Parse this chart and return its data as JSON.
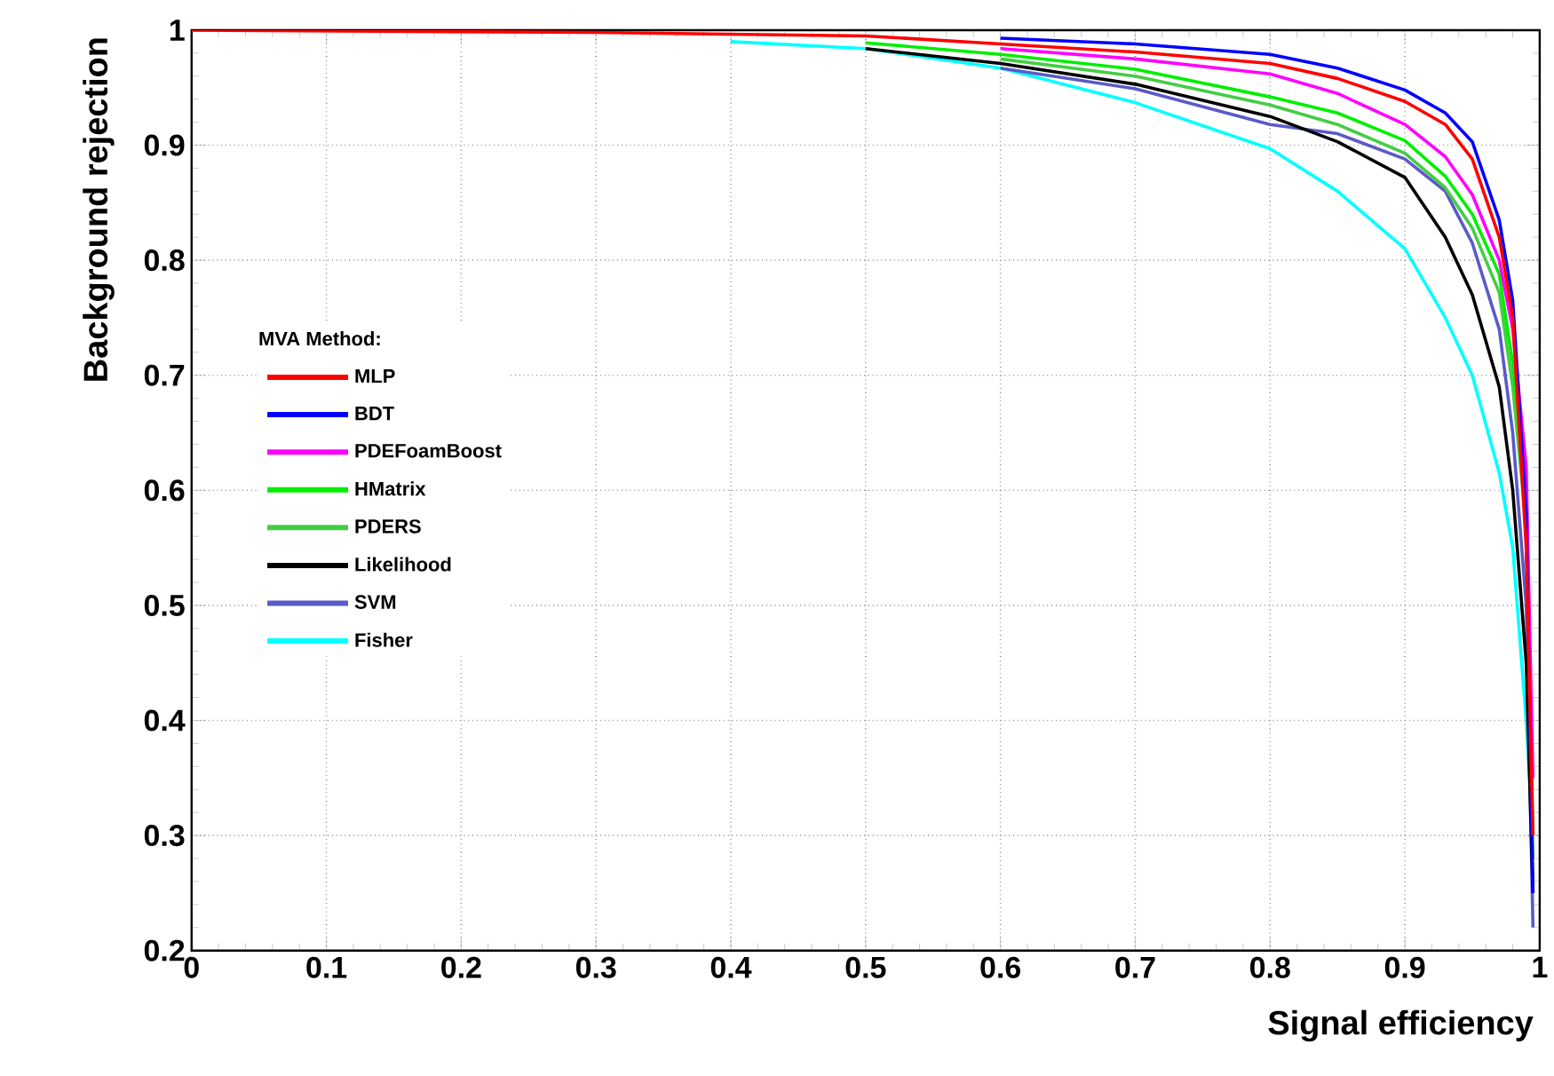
{
  "chart_data": {
    "type": "line",
    "xlabel": "Signal efficiency",
    "ylabel": "Background rejection",
    "legend_title": "MVA Method:",
    "xlim": [
      0,
      1
    ],
    "ylim": [
      0.2,
      1
    ],
    "xticks": [
      0,
      0.1,
      0.2,
      0.3,
      0.4,
      0.5,
      0.6,
      0.7,
      0.8,
      0.9,
      1
    ],
    "yticks": [
      0.2,
      0.3,
      0.4,
      0.5,
      0.6,
      0.7,
      0.8,
      0.9,
      1
    ],
    "grid": true,
    "legend": "left",
    "marker": "none",
    "series": [
      {
        "name": "MLP",
        "color": "#ff0000",
        "x": [
          0,
          0.3,
          0.5,
          0.6,
          0.7,
          0.8,
          0.85,
          0.9,
          0.93,
          0.95,
          0.97,
          0.98,
          0.99,
          0.995
        ],
        "values": [
          1,
          0.998,
          0.995,
          0.988,
          0.981,
          0.971,
          0.958,
          0.938,
          0.918,
          0.888,
          0.82,
          0.75,
          0.55,
          0.3
        ]
      },
      {
        "name": "BDT",
        "color": "#0000ff",
        "x": [
          0.6,
          0.7,
          0.8,
          0.85,
          0.9,
          0.93,
          0.95,
          0.97,
          0.98,
          0.99,
          0.995
        ],
        "values": [
          0.993,
          0.988,
          0.979,
          0.967,
          0.948,
          0.928,
          0.903,
          0.835,
          0.765,
          0.58,
          0.25
        ]
      },
      {
        "name": "PDEFoamBoost",
        "color": "#ff00ff",
        "x": [
          0.6,
          0.7,
          0.8,
          0.85,
          0.9,
          0.93,
          0.95,
          0.97,
          0.98,
          0.99,
          0.995
        ],
        "values": [
          0.984,
          0.975,
          0.962,
          0.945,
          0.918,
          0.89,
          0.857,
          0.8,
          0.74,
          0.62,
          0.35
        ]
      },
      {
        "name": "HMatrix",
        "color": "#00ee00",
        "x": [
          0.5,
          0.6,
          0.7,
          0.8,
          0.85,
          0.9,
          0.93,
          0.95,
          0.97,
          0.98,
          0.99,
          0.995
        ],
        "values": [
          0.989,
          0.979,
          0.966,
          0.942,
          0.928,
          0.904,
          0.873,
          0.84,
          0.788,
          0.71,
          0.6,
          0.3
        ]
      },
      {
        "name": "PDERS",
        "color": "#44cc44",
        "x": [
          0.6,
          0.7,
          0.8,
          0.85,
          0.9,
          0.93,
          0.95,
          0.97,
          0.98,
          0.99,
          0.995
        ],
        "values": [
          0.975,
          0.96,
          0.935,
          0.918,
          0.893,
          0.863,
          0.828,
          0.772,
          0.69,
          0.57,
          0.28
        ]
      },
      {
        "name": "Likelihood",
        "color": "#000000",
        "x": [
          0.5,
          0.6,
          0.7,
          0.8,
          0.85,
          0.9,
          0.93,
          0.95,
          0.97,
          0.98,
          0.99,
          0.995
        ],
        "values": [
          0.984,
          0.971,
          0.953,
          0.925,
          0.903,
          0.872,
          0.82,
          0.77,
          0.69,
          0.6,
          0.45,
          0.25
        ]
      },
      {
        "name": "SVM",
        "color": "#5a5ac8",
        "x": [
          0.6,
          0.7,
          0.8,
          0.85,
          0.9,
          0.93,
          0.95,
          0.97,
          0.98,
          0.99,
          0.995
        ],
        "values": [
          0.967,
          0.949,
          0.918,
          0.91,
          0.888,
          0.86,
          0.815,
          0.74,
          0.65,
          0.5,
          0.22
        ]
      },
      {
        "name": "Fisher",
        "color": "#00ffff",
        "x": [
          0.4,
          0.5,
          0.6,
          0.7,
          0.8,
          0.85,
          0.9,
          0.93,
          0.95,
          0.97,
          0.98,
          0.99,
          0.995
        ],
        "values": [
          0.99,
          0.984,
          0.967,
          0.937,
          0.897,
          0.86,
          0.81,
          0.75,
          0.7,
          0.615,
          0.55,
          0.4,
          0.3
        ]
      }
    ]
  }
}
